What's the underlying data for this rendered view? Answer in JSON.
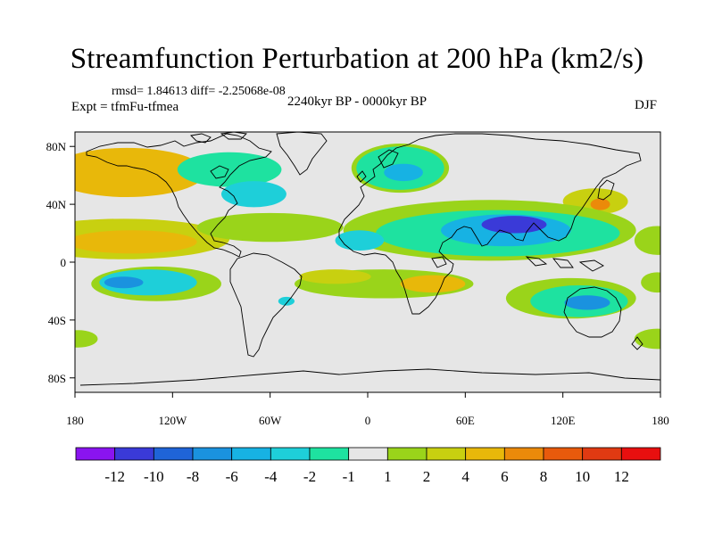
{
  "title": "Streamfunction Perturbation at 200 hPa (km2/s)",
  "stats": "rmsd= 1.84613 diff= -2.25068e-08",
  "experiment": "Expt = tfmFu-tfmea",
  "period": "2240kyr BP - 0000kyr BP",
  "season": "DJF",
  "map": {
    "lon_ticks": [
      {
        "lon": -180,
        "label": "180"
      },
      {
        "lon": -120,
        "label": "120W"
      },
      {
        "lon": -60,
        "label": "60W"
      },
      {
        "lon": 0,
        "label": "0"
      },
      {
        "lon": 60,
        "label": "60E"
      },
      {
        "lon": 120,
        "label": "120E"
      },
      {
        "lon": 180,
        "label": "180"
      }
    ],
    "lat_ticks": [
      {
        "lat": 80,
        "label": "80N"
      },
      {
        "lat": 40,
        "label": "40N"
      },
      {
        "lat": 0,
        "label": "0"
      },
      {
        "lat": -40,
        "label": "40S"
      },
      {
        "lat": -80,
        "label": "80S"
      }
    ],
    "anomaly_regions": [
      {
        "name": "north-pacific-positive",
        "lon": -148,
        "lat": 62,
        "rlon": 48,
        "rlat": 17,
        "level": 4
      },
      {
        "name": "north-pacific-core",
        "lon": -158,
        "lat": 60,
        "rlon": 22,
        "rlat": 8,
        "level": 5
      },
      {
        "name": "canada-negative",
        "lon": -85,
        "lat": 64,
        "rlon": 32,
        "rlat": 12,
        "level": -2
      },
      {
        "name": "northwest-atlantic-negative",
        "lon": -70,
        "lat": 47,
        "rlon": 20,
        "rlat": 9,
        "level": -3
      },
      {
        "name": "europe-positive-ring",
        "lon": 20,
        "lat": 65,
        "rlon": 30,
        "rlat": 17,
        "level": 2
      },
      {
        "name": "europe-negative",
        "lon": 20,
        "lat": 65,
        "rlon": 27,
        "rlat": 15,
        "level": -2
      },
      {
        "name": "europe-negative-core",
        "lon": 22,
        "lat": 62,
        "rlon": 12,
        "rlat": 6,
        "level": -4
      },
      {
        "name": "east-asia-positive",
        "lon": 140,
        "lat": 42,
        "rlon": 20,
        "rlat": 9,
        "level": 3
      },
      {
        "name": "east-asia-positive-core",
        "lon": 143,
        "lat": 40,
        "rlon": 6,
        "rlat": 4,
        "level": 6
      },
      {
        "name": "tropical-pacific-positive",
        "lon": -150,
        "lat": 16,
        "rlon": 65,
        "rlat": 14,
        "level": 3
      },
      {
        "name": "tropical-pacific-core",
        "lon": -145,
        "lat": 14,
        "rlon": 40,
        "rlat": 8,
        "level": 5
      },
      {
        "name": "central-america-positive",
        "lon": -60,
        "lat": 24,
        "rlon": 45,
        "rlat": 10,
        "level": 2
      },
      {
        "name": "dateline-east-positive",
        "lon": 178,
        "lat": 15,
        "rlon": 14,
        "rlat": 10,
        "level": 2
      },
      {
        "name": "asia-positive-band",
        "lon": 75,
        "lat": 22,
        "rlon": 90,
        "rlat": 21,
        "level": 2
      },
      {
        "name": "asia-negative",
        "lon": 80,
        "lat": 20,
        "rlon": 75,
        "rlat": 16,
        "level": -2
      },
      {
        "name": "asia-negative-mid",
        "lon": 85,
        "lat": 22,
        "rlon": 40,
        "rlat": 11,
        "level": -4
      },
      {
        "name": "asia-negative-core",
        "lon": 90,
        "lat": 26,
        "rlon": 20,
        "rlat": 6,
        "level": -7
      },
      {
        "name": "atlantic-negative",
        "lon": -5,
        "lat": 15,
        "rlon": 15,
        "rlat": 7,
        "level": -3
      },
      {
        "name": "south-pacific-positive",
        "lon": -130,
        "lat": -15,
        "rlon": 40,
        "rlat": 12,
        "level": 2
      },
      {
        "name": "south-pacific-negative",
        "lon": -135,
        "lat": -14,
        "rlon": 30,
        "rlat": 9,
        "level": -3
      },
      {
        "name": "south-pacific-core",
        "lon": -150,
        "lat": -14,
        "rlon": 12,
        "rlat": 4,
        "level": -5
      },
      {
        "name": "south-atlantic-positive",
        "lon": 10,
        "lat": -15,
        "rlon": 55,
        "rlat": 10,
        "level": 2
      },
      {
        "name": "south-atlantic-core",
        "lon": 40,
        "lat": -15,
        "rlon": 20,
        "rlat": 6,
        "level": 5
      },
      {
        "name": "south-atlantic-inner",
        "lon": -20,
        "lat": -10,
        "rlon": 22,
        "rlat": 5,
        "level": 3
      },
      {
        "name": "patagonia-negative",
        "lon": -50,
        "lat": -27,
        "rlon": 5,
        "rlat": 3,
        "level": -3
      },
      {
        "name": "australia-positive",
        "lon": 125,
        "lat": -25,
        "rlon": 40,
        "rlat": 14,
        "level": 2
      },
      {
        "name": "australia-negative",
        "lon": 130,
        "lat": -27,
        "rlon": 30,
        "rlat": 11,
        "level": -2
      },
      {
        "name": "australia-negative-core",
        "lon": 135,
        "lat": -28,
        "rlon": 14,
        "rlat": 5,
        "level": -5
      },
      {
        "name": "far-east-south-positive",
        "lon": 178,
        "lat": -14,
        "rlon": 10,
        "rlat": 7,
        "level": 2
      },
      {
        "name": "southern-ocean-west",
        "lon": -178,
        "lat": -53,
        "rlon": 12,
        "rlat": 6,
        "level": 2
      },
      {
        "name": "southern-ocean-east",
        "lon": 178,
        "lat": -53,
        "rlon": 14,
        "rlat": 7,
        "level": 2
      }
    ]
  },
  "colorbar": {
    "boundary_labels": [
      "-12",
      "-10",
      "-8",
      "-6",
      "-4",
      "-2",
      "-1",
      "1",
      "2",
      "4",
      "6",
      "8",
      "10",
      "12"
    ],
    "colors": [
      "#8a14f0",
      "#3a3ad8",
      "#1f64d8",
      "#1a92df",
      "#17b2e3",
      "#1ecfd9",
      "#1ee2a0",
      "#e6e6e6",
      "#9ad41a",
      "#c8d010",
      "#e8b80a",
      "#eb8a0a",
      "#e85a0c",
      "#e03a12",
      "#e80f0f"
    ]
  },
  "land_color": "#000000",
  "ocean_color": "#e6e6e6"
}
